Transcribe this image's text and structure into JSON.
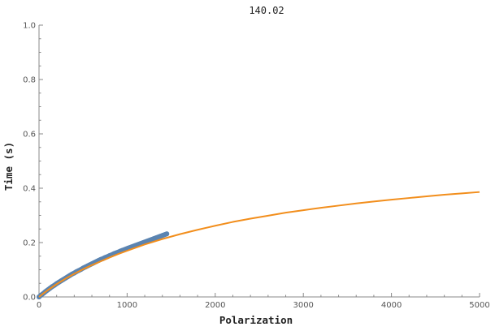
{
  "chart_data": {
    "type": "scatter",
    "title": "140.02",
    "xlabel": "Polarization",
    "ylabel": "Time (s)",
    "xlim": [
      0,
      5000
    ],
    "ylim": [
      0,
      1.0
    ],
    "x_ticks": [
      0,
      1000,
      2000,
      3000,
      4000,
      5000
    ],
    "x_tick_labels": [
      "0",
      "1000",
      "2000",
      "3000",
      "4000",
      "5000"
    ],
    "y_ticks": [
      0,
      0.2,
      0.4,
      0.6,
      0.8,
      1.0
    ],
    "y_tick_labels": [
      "0.0",
      "0.2",
      "0.4",
      "0.6",
      "0.8",
      "1.0"
    ],
    "grid": false,
    "series": [
      {
        "kind": "scatter",
        "color": "#5b84b1",
        "points": [
          [
            0,
            0.0
          ],
          [
            25,
            0.007
          ],
          [
            50,
            0.013
          ],
          [
            75,
            0.02
          ],
          [
            100,
            0.026
          ],
          [
            125,
            0.032
          ],
          [
            150,
            0.038
          ],
          [
            175,
            0.043
          ],
          [
            200,
            0.049
          ],
          [
            225,
            0.054
          ],
          [
            250,
            0.059
          ],
          [
            275,
            0.064
          ],
          [
            300,
            0.069
          ],
          [
            325,
            0.074
          ],
          [
            350,
            0.079
          ],
          [
            375,
            0.084
          ],
          [
            400,
            0.088
          ],
          [
            425,
            0.093
          ],
          [
            450,
            0.097
          ],
          [
            475,
            0.101
          ],
          [
            500,
            0.106
          ],
          [
            525,
            0.11
          ],
          [
            550,
            0.114
          ],
          [
            575,
            0.118
          ],
          [
            600,
            0.122
          ],
          [
            625,
            0.126
          ],
          [
            650,
            0.13
          ],
          [
            675,
            0.134
          ],
          [
            700,
            0.138
          ],
          [
            725,
            0.141
          ],
          [
            750,
            0.145
          ],
          [
            775,
            0.148
          ],
          [
            800,
            0.152
          ],
          [
            825,
            0.155
          ],
          [
            850,
            0.159
          ],
          [
            875,
            0.162
          ],
          [
            900,
            0.165
          ],
          [
            925,
            0.169
          ],
          [
            950,
            0.172
          ],
          [
            975,
            0.175
          ],
          [
            1000,
            0.178
          ],
          [
            1025,
            0.181
          ],
          [
            1050,
            0.184
          ],
          [
            1075,
            0.187
          ],
          [
            1100,
            0.19
          ],
          [
            1125,
            0.193
          ],
          [
            1150,
            0.196
          ],
          [
            1175,
            0.199
          ],
          [
            1200,
            0.202
          ],
          [
            1225,
            0.205
          ],
          [
            1250,
            0.208
          ],
          [
            1275,
            0.211
          ],
          [
            1300,
            0.214
          ],
          [
            1325,
            0.217
          ],
          [
            1350,
            0.22
          ],
          [
            1375,
            0.223
          ],
          [
            1400,
            0.226
          ],
          [
            1425,
            0.229
          ],
          [
            1450,
            0.232
          ]
        ]
      },
      {
        "kind": "line",
        "color": "#f28e1c",
        "points": [
          [
            0,
            0.0
          ],
          [
            50,
            0.013
          ],
          [
            100,
            0.025
          ],
          [
            200,
            0.047
          ],
          [
            300,
            0.067
          ],
          [
            400,
            0.085
          ],
          [
            500,
            0.102
          ],
          [
            600,
            0.117
          ],
          [
            700,
            0.131
          ],
          [
            800,
            0.145
          ],
          [
            900,
            0.158
          ],
          [
            1000,
            0.17
          ],
          [
            1200,
            0.193
          ],
          [
            1400,
            0.213
          ],
          [
            1600,
            0.231
          ],
          [
            1800,
            0.247
          ],
          [
            2000,
            0.262
          ],
          [
            2200,
            0.276
          ],
          [
            2400,
            0.288
          ],
          [
            2600,
            0.299
          ],
          [
            2800,
            0.31
          ],
          [
            3000,
            0.319
          ],
          [
            3200,
            0.328
          ],
          [
            3400,
            0.336
          ],
          [
            3600,
            0.344
          ],
          [
            3800,
            0.351
          ],
          [
            4000,
            0.358
          ],
          [
            4200,
            0.364
          ],
          [
            4400,
            0.37
          ],
          [
            4600,
            0.376
          ],
          [
            4800,
            0.381
          ],
          [
            5000,
            0.386
          ]
        ]
      }
    ]
  }
}
